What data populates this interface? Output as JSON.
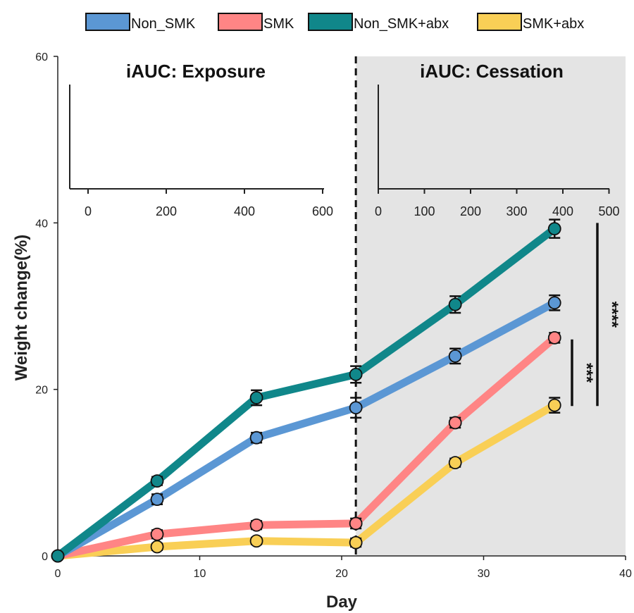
{
  "chart_data": {
    "type": "line",
    "xlabel": "Day",
    "ylabel": "Weight change(%)",
    "xlim": [
      0,
      40
    ],
    "ylim": [
      0,
      60
    ],
    "xticks": [
      "0",
      "10",
      "20",
      "30",
      "40"
    ],
    "yticks": [
      "0",
      "20",
      "40",
      "60"
    ],
    "x": [
      0,
      7,
      14,
      21,
      28,
      35
    ],
    "cessation_start_day": 21,
    "shaded_region": [
      21,
      40
    ],
    "legend_position": "top",
    "series": [
      {
        "name": "Non_SMK",
        "color": "#5b97d4",
        "values": [
          0,
          6.8,
          14.2,
          17.8,
          24.0,
          30.4
        ],
        "err": [
          0.3,
          0.6,
          0.6,
          1.2,
          0.9,
          0.9
        ]
      },
      {
        "name": "SMK",
        "color": "#ff8585",
        "values": [
          0,
          2.6,
          3.7,
          3.9,
          16.0,
          26.2
        ],
        "err": [
          0.3,
          0.5,
          0.5,
          0.6,
          0.6,
          0.6
        ]
      },
      {
        "name": "Non_SMK+abx",
        "color": "#10878a",
        "values": [
          0,
          9.0,
          19.0,
          21.8,
          30.2,
          39.3
        ],
        "err": [
          0.3,
          0.5,
          0.9,
          1.0,
          1.0,
          1.1
        ]
      },
      {
        "name": "SMK+abx",
        "color": "#f9cf56",
        "values": [
          0,
          1.1,
          1.8,
          1.6,
          11.2,
          18.1
        ],
        "err": [
          0.3,
          0.4,
          0.4,
          0.5,
          0.5,
          0.9
        ]
      }
    ],
    "insets": [
      {
        "title": "iAUC: Exposure",
        "xticks": [
          "0",
          "200",
          "400",
          "600"
        ]
      },
      {
        "title": "iAUC: Cessation",
        "xticks": [
          "0",
          "100",
          "200",
          "300",
          "400",
          "500"
        ]
      }
    ],
    "significance": [
      {
        "label": "***",
        "y_range": [
          18.0,
          26.0
        ]
      },
      {
        "label": "****",
        "y_range": [
          18.0,
          40.0
        ]
      }
    ]
  }
}
